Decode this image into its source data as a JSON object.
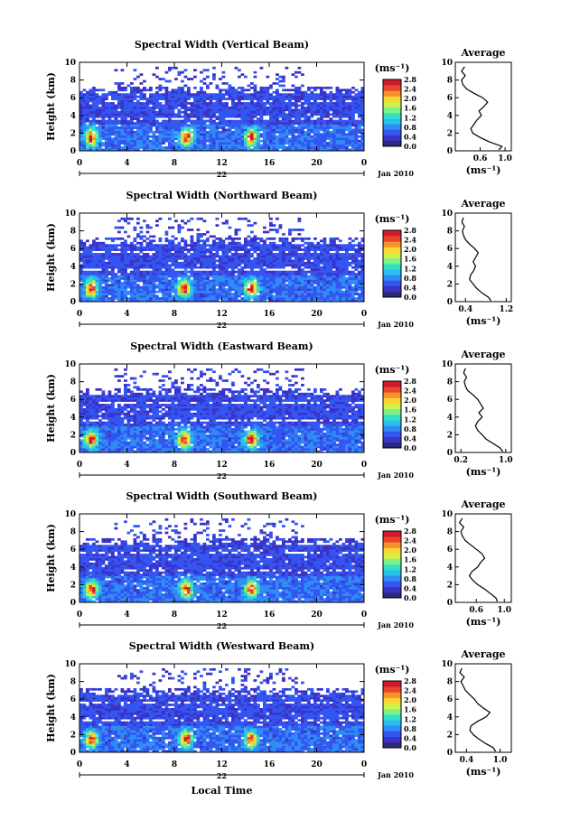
{
  "figure": {
    "xlabel": "Local Time",
    "date_label": "Jan 2010",
    "day_label": "22"
  },
  "colorbar": {
    "unit": "(ms⁻¹)",
    "ticks": [
      "0.0",
      "0.4",
      "0.8",
      "1.2",
      "1.6",
      "2.0",
      "2.4",
      "2.8"
    ],
    "colors": [
      "#2a2a7a",
      "#3b32c8",
      "#3355f0",
      "#2f8cf5",
      "#29bfee",
      "#34e0c4",
      "#7ef08a",
      "#d2f04a",
      "#fbd531",
      "#f6912b",
      "#e8452c",
      "#d01a2a"
    ]
  },
  "average": {
    "title": "Average",
    "xlabel": "(ms⁻¹)"
  },
  "chart_data": [
    {
      "type": "heatmap",
      "title": "Spectral Width (Vertical Beam)",
      "ylabel": "Height (km)",
      "xticks": [
        "0",
        "4",
        "8",
        "12",
        "16",
        "20",
        "0"
      ],
      "yticks": [
        "0",
        "2",
        "4",
        "6",
        "8",
        "10"
      ],
      "xlim": [
        0,
        24
      ],
      "ylim": [
        0,
        10
      ],
      "zlim": [
        0,
        2.8
      ],
      "top_height_km": 6.6,
      "bursts_hour": [
        1,
        9,
        14.5
      ],
      "profile": {
        "xticks": [
          "0.6",
          "1.0"
        ],
        "xtick_values": [
          0.6,
          1.0
        ],
        "xlim": [
          0.2,
          1.1
        ],
        "height": [
          0.1,
          0.5,
          1.0,
          1.5,
          2.0,
          2.5,
          3.0,
          3.5,
          4.0,
          4.5,
          5.0,
          5.5,
          6.0,
          6.5,
          7.0,
          7.5,
          8.0,
          8.5,
          9.0,
          9.5
        ],
        "width": [
          0.9,
          0.95,
          0.75,
          0.6,
          0.48,
          0.45,
          0.5,
          0.55,
          0.62,
          0.58,
          0.66,
          0.72,
          0.64,
          0.5,
          0.38,
          0.32,
          0.3,
          0.36,
          0.3,
          0.35
        ]
      }
    },
    {
      "type": "heatmap",
      "title": "Spectral Width (Northward Beam)",
      "ylabel": "Height (km)",
      "xticks": [
        "0",
        "4",
        "8",
        "12",
        "16",
        "20",
        "0"
      ],
      "yticks": [
        "0",
        "2",
        "4",
        "6",
        "8",
        "10"
      ],
      "xlim": [
        0,
        24
      ],
      "ylim": [
        0,
        10
      ],
      "zlim": [
        0,
        2.8
      ],
      "top_height_km": 6.6,
      "bursts_hour": [
        1,
        8.8,
        14.5
      ],
      "profile": {
        "xticks": [
          "0.4",
          "1.2"
        ],
        "xtick_values": [
          0.4,
          1.2
        ],
        "xlim": [
          0.2,
          1.3
        ],
        "height": [
          0.1,
          0.5,
          1.0,
          1.5,
          2.0,
          2.5,
          3.0,
          3.5,
          4.0,
          4.5,
          5.0,
          5.5,
          6.0,
          6.5,
          7.0,
          7.5,
          8.0,
          8.5,
          9.0,
          9.5
        ],
        "width": [
          0.9,
          0.85,
          0.72,
          0.62,
          0.55,
          0.48,
          0.5,
          0.56,
          0.6,
          0.55,
          0.6,
          0.65,
          0.58,
          0.48,
          0.4,
          0.36,
          0.34,
          0.38,
          0.33,
          0.36
        ]
      }
    },
    {
      "type": "heatmap",
      "title": "Spectral Width (Eastward Beam)",
      "ylabel": "Height (km)",
      "xticks": [
        "0",
        "4",
        "8",
        "12",
        "16",
        "20",
        "0"
      ],
      "yticks": [
        "0",
        "2",
        "4",
        "6",
        "8",
        "10"
      ],
      "xlim": [
        0,
        24
      ],
      "ylim": [
        0,
        10
      ],
      "zlim": [
        0,
        2.8
      ],
      "top_height_km": 6.6,
      "bursts_hour": [
        1,
        8.8,
        14.5
      ],
      "profile": {
        "xticks": [
          "0.2",
          "1.0"
        ],
        "xtick_values": [
          0.2,
          1.0
        ],
        "xlim": [
          0.1,
          1.1
        ],
        "height": [
          0.1,
          0.5,
          1.0,
          1.5,
          2.0,
          2.5,
          3.0,
          3.5,
          4.0,
          4.5,
          5.0,
          5.5,
          6.0,
          6.5,
          7.0,
          7.5,
          8.0,
          8.5,
          9.0,
          9.5
        ],
        "width": [
          0.95,
          0.9,
          0.78,
          0.65,
          0.58,
          0.5,
          0.46,
          0.5,
          0.58,
          0.52,
          0.6,
          0.55,
          0.5,
          0.42,
          0.32,
          0.28,
          0.26,
          0.3,
          0.25,
          0.28
        ]
      }
    },
    {
      "type": "heatmap",
      "title": "Spectral Width (Southward Beam)",
      "ylabel": "Height (km)",
      "xticks": [
        "0",
        "4",
        "8",
        "12",
        "16",
        "20",
        "0"
      ],
      "yticks": [
        "0",
        "2",
        "4",
        "6",
        "8",
        "10"
      ],
      "xlim": [
        0,
        24
      ],
      "ylim": [
        0,
        10
      ],
      "zlim": [
        0,
        2.8
      ],
      "top_height_km": 6.4,
      "bursts_hour": [
        1,
        9,
        14.5
      ],
      "profile": {
        "xticks": [
          "0.6",
          "1.0"
        ],
        "xtick_values": [
          0.6,
          1.0
        ],
        "xlim": [
          0.3,
          1.1
        ],
        "height": [
          0.1,
          0.5,
          1.0,
          1.5,
          2.0,
          2.5,
          3.0,
          3.5,
          4.0,
          4.5,
          5.0,
          5.5,
          6.0,
          6.5,
          7.0,
          7.5,
          8.0,
          8.5,
          9.0,
          9.5
        ],
        "width": [
          0.9,
          0.88,
          0.8,
          0.72,
          0.62,
          0.55,
          0.5,
          0.54,
          0.62,
          0.66,
          0.72,
          0.68,
          0.6,
          0.52,
          0.44,
          0.4,
          0.38,
          0.42,
          0.36,
          0.4
        ]
      }
    },
    {
      "type": "heatmap",
      "title": "Spectral Width (Westward Beam)",
      "ylabel": "Height (km)",
      "xticks": [
        "0",
        "4",
        "8",
        "12",
        "16",
        "20",
        "0"
      ],
      "yticks": [
        "0",
        "2",
        "4",
        "6",
        "8",
        "10"
      ],
      "xlim": [
        0,
        24
      ],
      "ylim": [
        0,
        10
      ],
      "zlim": [
        0,
        2.8
      ],
      "top_height_km": 6.5,
      "bursts_hour": [
        1,
        9,
        14.5
      ],
      "profile": {
        "xticks": [
          "0.4",
          "1.0"
        ],
        "xtick_values": [
          0.4,
          1.0
        ],
        "xlim": [
          0.2,
          1.2
        ],
        "height": [
          0.1,
          0.5,
          1.0,
          1.5,
          2.0,
          2.5,
          3.0,
          3.5,
          4.0,
          4.5,
          5.0,
          5.5,
          6.0,
          6.5,
          7.0,
          7.5,
          8.0,
          8.5,
          9.0,
          9.5
        ],
        "width": [
          0.92,
          0.88,
          0.74,
          0.62,
          0.52,
          0.46,
          0.48,
          0.6,
          0.75,
          0.82,
          0.7,
          0.6,
          0.54,
          0.46,
          0.38,
          0.34,
          0.3,
          0.36,
          0.28,
          0.32
        ]
      }
    }
  ]
}
